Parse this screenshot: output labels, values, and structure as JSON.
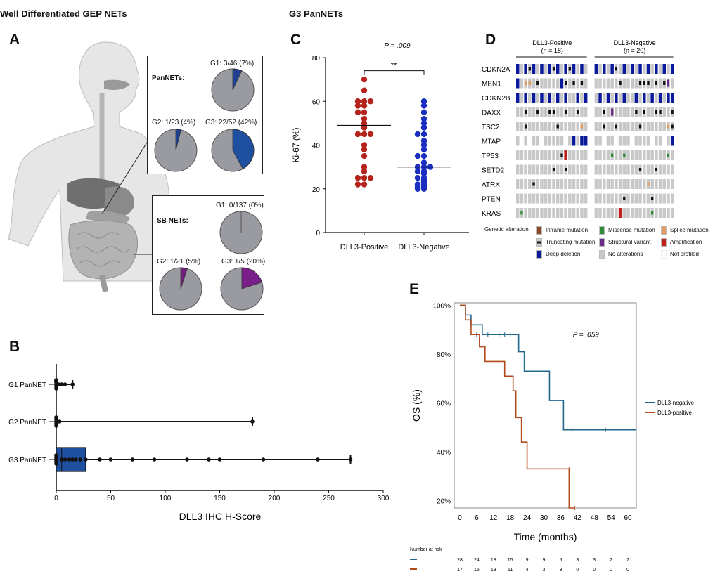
{
  "headers": {
    "left": "Well Differentiated GEP NETs",
    "right": "G3 PanNETs"
  },
  "panel_labels": {
    "a": "A",
    "b": "B",
    "c": "C",
    "d": "D",
    "e": "E"
  },
  "panel_a": {
    "pan_group_label": "PanNETs:",
    "sb_group_label": "SB NETs:",
    "pies": [
      {
        "label": "G1: 3/46 (7%)",
        "fraction": 0.07,
        "color": "#1f3f8f"
      },
      {
        "label": "G2: 1/23 (4%)",
        "fraction": 0.04,
        "color": "#1f3f8f"
      },
      {
        "label": "G3: 22/52 (42%)",
        "fraction": 0.42,
        "color": "#1f4f9f"
      },
      {
        "label": "G1: 0/137 (0%)",
        "fraction": 0.0,
        "color": "#6d1f7a"
      },
      {
        "label": "G2: 1/21 (5%)",
        "fraction": 0.05,
        "color": "#6d1f7a"
      },
      {
        "label": "G3: 1/5 (20%)",
        "fraction": 0.2,
        "color": "#7a1f8a"
      }
    ],
    "pie_base_color": "#9a9ba0"
  },
  "chart_data": [
    {
      "panel": "B",
      "type": "box-scatter",
      "xlabel": "DLL3 IHC H-Score",
      "xlim": [
        0,
        300
      ],
      "xticks": [
        0,
        50,
        100,
        150,
        200,
        250,
        300
      ],
      "categories": [
        "G1 PanNET",
        "G2 PanNET",
        "G3 PanNET"
      ],
      "ranges": [
        [
          0,
          15
        ],
        [
          0,
          180
        ],
        [
          0,
          270
        ]
      ],
      "box": {
        "category": "G3 PanNET",
        "q1": 0,
        "q3": 27,
        "median": 5
      },
      "points": [
        [
          0,
          0,
          0,
          0,
          0,
          0,
          0,
          2,
          5,
          8,
          15
        ],
        [
          0,
          0,
          0,
          0,
          0,
          0,
          3,
          180
        ],
        [
          0,
          0,
          0,
          0,
          0,
          0,
          0,
          0,
          5,
          8,
          12,
          15,
          18,
          22,
          27,
          40,
          50,
          70,
          90,
          120,
          140,
          150,
          190,
          240,
          270
        ]
      ]
    },
    {
      "panel": "C",
      "type": "scatter",
      "ylabel": "Ki-67 (%)",
      "ylim": [
        0,
        80
      ],
      "yticks": [
        0,
        20,
        40,
        60,
        80
      ],
      "categories": [
        "DLL3-Positive",
        "DLL3-Negative"
      ],
      "pvalue": "P = .009",
      "sig": "**",
      "medians": [
        49,
        30
      ],
      "colors": [
        "#b5231d",
        "#1a2fc0"
      ],
      "series": [
        {
          "name": "DLL3-Positive",
          "values": [
            70,
            65,
            60,
            60,
            60,
            58,
            58,
            55,
            55,
            52,
            50,
            48,
            45,
            45,
            45,
            40,
            38,
            35,
            30,
            28,
            25,
            25,
            25,
            22,
            22
          ]
        },
        {
          "name": "DLL3-Negative",
          "values": [
            60,
            58,
            55,
            52,
            50,
            48,
            45,
            45,
            42,
            40,
            38,
            35,
            35,
            32,
            30,
            30,
            30,
            28,
            28,
            27,
            25,
            25,
            24,
            23,
            22,
            22,
            21,
            21,
            20,
            20
          ]
        }
      ]
    },
    {
      "panel": "D",
      "type": "oncoprint",
      "groups": [
        {
          "name": "DLL3-Positive",
          "n": "(n = 18)"
        },
        {
          "name": "DLL3-Negative",
          "n": "(n = 20)"
        }
      ],
      "genes": [
        "CDKN2A",
        "MEN1",
        "CDKN2B",
        "DAXX",
        "TSC2",
        "MTAP",
        "TP53",
        "SETD2",
        "ATRX",
        "PTEN",
        "KRAS"
      ],
      "legend_title": "Genetic alteration",
      "legend": [
        {
          "label": "Inframe mutation",
          "color": "#8a4a2a"
        },
        {
          "label": "Missense mutation",
          "color": "#2f8a3a"
        },
        {
          "label": "Splice mutation",
          "color": "#e39a5a"
        },
        {
          "label": "Truncating mutation",
          "color": "#111111"
        },
        {
          "label": "Structural variant",
          "color": "#6a2a8a"
        },
        {
          "label": "Amplification",
          "color": "#c0201a"
        },
        {
          "label": "Deep deletion",
          "color": "#0a1a9a"
        },
        {
          "label": "No alterations",
          "color": "#c8c8c8"
        },
        {
          "label": "Not profiled",
          "color": "#ffffff"
        }
      ]
    },
    {
      "panel": "E",
      "type": "line",
      "ylabel": "OS (%)",
      "xlabel": "Time (months)",
      "xticks": [
        0,
        6,
        12,
        18,
        24,
        30,
        36,
        42,
        48,
        54,
        60
      ],
      "xlim": [
        -2,
        63
      ],
      "yticks": [
        "100%",
        "80%",
        "60%",
        "40%",
        "20%"
      ],
      "ytick_values": [
        100,
        80,
        60,
        40,
        20
      ],
      "ylim": [
        17,
        101
      ],
      "pvalue": "P = .059",
      "series": [
        {
          "name": "DLL3-negative",
          "color": "#22688c",
          "points": [
            [
              0,
              100
            ],
            [
              2,
              100
            ],
            [
              2,
              96
            ],
            [
              4,
              96
            ],
            [
              4,
              92
            ],
            [
              8,
              92
            ],
            [
              8,
              88
            ],
            [
              21,
              88
            ],
            [
              21,
              81
            ],
            [
              23,
              81
            ],
            [
              23,
              73
            ],
            [
              32,
              73
            ],
            [
              32,
              61
            ],
            [
              37,
              61
            ],
            [
              37,
              49
            ],
            [
              63,
              49
            ]
          ]
        },
        {
          "name": "DLL3-positive",
          "color": "#b24a1a",
          "points": [
            [
              0,
              100
            ],
            [
              2,
              100
            ],
            [
              2,
              94
            ],
            [
              4,
              94
            ],
            [
              4,
              88
            ],
            [
              7,
              88
            ],
            [
              7,
              83
            ],
            [
              9,
              83
            ],
            [
              9,
              77
            ],
            [
              16,
              77
            ],
            [
              16,
              71
            ],
            [
              19,
              71
            ],
            [
              19,
              65
            ],
            [
              20,
              65
            ],
            [
              20,
              54
            ],
            [
              22,
              54
            ],
            [
              22,
              44
            ],
            [
              24,
              44
            ],
            [
              24,
              33
            ],
            [
              39,
              33
            ],
            [
              39,
              17
            ],
            [
              41,
              17
            ]
          ]
        }
      ],
      "risk_table": {
        "title": "Number at risk",
        "rows": [
          {
            "color": "#22688c",
            "values": [
              "28",
              "24",
              "18",
              "15",
              "9",
              "9",
              "5",
              "3",
              "3",
              "2",
              "2"
            ]
          },
          {
            "color": "#b24a1a",
            "values": [
              "17",
              "15",
              "13",
              "11",
              "4",
              "3",
              "3",
              "0",
              "0",
              "0",
              "0"
            ]
          }
        ]
      }
    }
  ]
}
